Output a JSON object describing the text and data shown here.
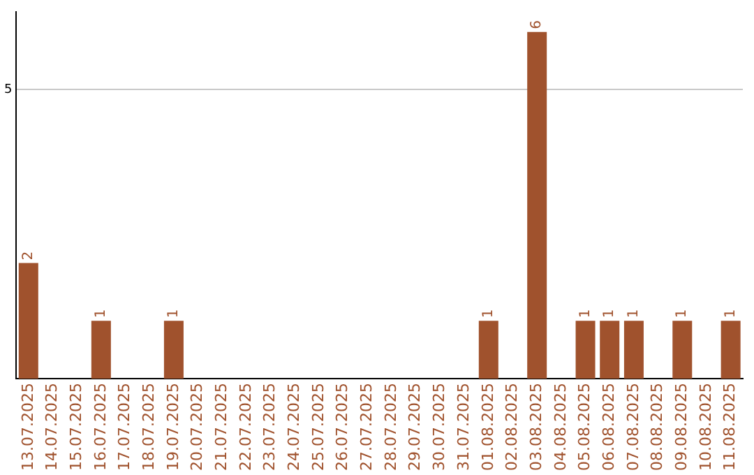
{
  "chart_data": {
    "type": "bar",
    "categories": [
      "13.07.2025",
      "14.07.2025",
      "15.07.2025",
      "16.07.2025",
      "17.07.2025",
      "18.07.2025",
      "19.07.2025",
      "20.07.2025",
      "21.07.2025",
      "22.07.2025",
      "23.07.2025",
      "24.07.2025",
      "25.07.2025",
      "26.07.2025",
      "27.07.2025",
      "28.07.2025",
      "29.07.2025",
      "30.07.2025",
      "31.07.2025",
      "01.08.2025",
      "02.08.2025",
      "03.08.2025",
      "04.08.2025",
      "05.08.2025",
      "06.08.2025",
      "07.08.2025",
      "08.08.2025",
      "09.08.2025",
      "10.08.2025",
      "11.08.2025"
    ],
    "values": [
      2,
      0,
      0,
      1,
      0,
      0,
      1,
      0,
      0,
      0,
      0,
      0,
      0,
      0,
      0,
      0,
      0,
      0,
      0,
      1,
      0,
      6,
      0,
      1,
      1,
      1,
      0,
      1,
      0,
      1
    ],
    "value_labels": [
      "2",
      null,
      null,
      "1",
      null,
      null,
      "1",
      null,
      null,
      null,
      null,
      null,
      null,
      null,
      null,
      null,
      null,
      null,
      null,
      "1",
      null,
      "6",
      null,
      "1",
      "1",
      "1",
      null,
      "1",
      null,
      "1"
    ],
    "color": "#a0522d",
    "ylim": [
      0,
      6.35
    ],
    "yticks": [
      5
    ],
    "grid": "y",
    "legend": false
  }
}
